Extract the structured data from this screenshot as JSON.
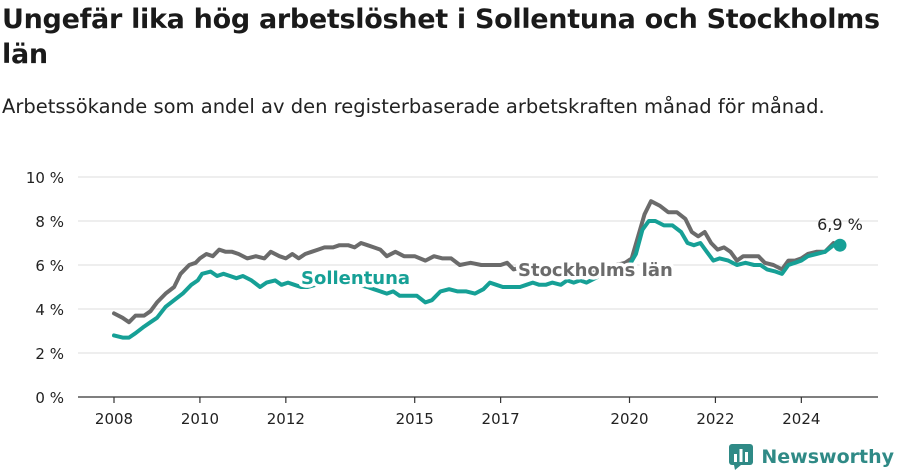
{
  "title": "Ungefär lika hög arbetslöshet i Sollentuna och Stockholms län",
  "subtitle": "Arbetssökande som andel av den registerbaserade arbetskraften månad för månad.",
  "brand": {
    "name": "Newsworthy",
    "icon": "newsworthy-logo-icon"
  },
  "colors": {
    "stockholm": "#6b6b6b",
    "sollentuna": "#16a096",
    "grid": "#dcdcdc"
  },
  "chart_data": {
    "type": "line",
    "ylim": [
      0,
      10
    ],
    "y_ticks": [
      0,
      2,
      4,
      6,
      8,
      10
    ],
    "y_tick_labels": [
      "0 %",
      "2 %",
      "4 %",
      "6 %",
      "8 %",
      "10 %"
    ],
    "x_ticks": [
      2008,
      2010,
      2012,
      2015,
      2017,
      2020,
      2022,
      2024
    ],
    "x_tick_labels": [
      "2008",
      "2010",
      "2012",
      "2015",
      "2017",
      "2020",
      "2022",
      "2024"
    ],
    "grid": true,
    "last_value_label": "6,9 %",
    "series": [
      {
        "name": "Stockholms län",
        "points": [
          [
            2008.0,
            3.8
          ],
          [
            2008.2,
            3.6
          ],
          [
            2008.35,
            3.4
          ],
          [
            2008.5,
            3.7
          ],
          [
            2008.7,
            3.7
          ],
          [
            2008.85,
            3.9
          ],
          [
            2009.0,
            4.3
          ],
          [
            2009.2,
            4.7
          ],
          [
            2009.4,
            5.0
          ],
          [
            2009.55,
            5.6
          ],
          [
            2009.75,
            6.0
          ],
          [
            2009.9,
            6.1
          ],
          [
            2010.0,
            6.3
          ],
          [
            2010.15,
            6.5
          ],
          [
            2010.3,
            6.4
          ],
          [
            2010.45,
            6.7
          ],
          [
            2010.6,
            6.6
          ],
          [
            2010.75,
            6.6
          ],
          [
            2010.9,
            6.5
          ],
          [
            2011.1,
            6.3
          ],
          [
            2011.3,
            6.4
          ],
          [
            2011.5,
            6.3
          ],
          [
            2011.65,
            6.6
          ],
          [
            2011.85,
            6.4
          ],
          [
            2012.0,
            6.3
          ],
          [
            2012.15,
            6.5
          ],
          [
            2012.3,
            6.3
          ],
          [
            2012.45,
            6.5
          ],
          [
            2012.6,
            6.6
          ],
          [
            2012.75,
            6.7
          ],
          [
            2012.9,
            6.8
          ],
          [
            2013.1,
            6.8
          ],
          [
            2013.25,
            6.9
          ],
          [
            2013.45,
            6.9
          ],
          [
            2013.6,
            6.8
          ],
          [
            2013.75,
            7.0
          ],
          [
            2013.9,
            6.9
          ],
          [
            2014.05,
            6.8
          ],
          [
            2014.2,
            6.7
          ],
          [
            2014.35,
            6.4
          ],
          [
            2014.55,
            6.6
          ],
          [
            2014.75,
            6.4
          ],
          [
            2015.0,
            6.4
          ],
          [
            2015.25,
            6.2
          ],
          [
            2015.45,
            6.4
          ],
          [
            2015.65,
            6.3
          ],
          [
            2015.85,
            6.3
          ],
          [
            2016.05,
            6.0
          ],
          [
            2016.3,
            6.1
          ],
          [
            2016.55,
            6.0
          ],
          [
            2016.8,
            6.0
          ],
          [
            2017.0,
            6.0
          ],
          [
            2017.15,
            6.1
          ],
          [
            2017.3,
            5.8
          ],
          [
            2017.5,
            5.9
          ],
          [
            2017.7,
            5.8
          ],
          [
            2017.9,
            5.6
          ],
          [
            2018.1,
            5.6
          ],
          [
            2018.3,
            5.7
          ],
          [
            2018.5,
            5.5
          ],
          [
            2018.7,
            5.6
          ],
          [
            2018.9,
            5.7
          ],
          [
            2019.1,
            5.6
          ],
          [
            2019.3,
            5.8
          ],
          [
            2019.5,
            5.9
          ],
          [
            2019.7,
            6.0
          ],
          [
            2019.9,
            6.1
          ],
          [
            2020.05,
            6.3
          ],
          [
            2020.2,
            7.3
          ],
          [
            2020.35,
            8.3
          ],
          [
            2020.5,
            8.9
          ],
          [
            2020.7,
            8.7
          ],
          [
            2020.9,
            8.4
          ],
          [
            2021.1,
            8.4
          ],
          [
            2021.3,
            8.1
          ],
          [
            2021.45,
            7.5
          ],
          [
            2021.6,
            7.3
          ],
          [
            2021.75,
            7.5
          ],
          [
            2021.9,
            7.0
          ],
          [
            2022.05,
            6.7
          ],
          [
            2022.2,
            6.8
          ],
          [
            2022.35,
            6.6
          ],
          [
            2022.5,
            6.2
          ],
          [
            2022.65,
            6.4
          ],
          [
            2022.8,
            6.4
          ],
          [
            2023.0,
            6.4
          ],
          [
            2023.15,
            6.1
          ],
          [
            2023.35,
            6.0
          ],
          [
            2023.55,
            5.8
          ],
          [
            2023.7,
            6.2
          ],
          [
            2023.85,
            6.2
          ],
          [
            2024.0,
            6.3
          ],
          [
            2024.15,
            6.5
          ],
          [
            2024.35,
            6.6
          ],
          [
            2024.55,
            6.6
          ],
          [
            2024.75,
            7.0
          ],
          [
            2024.9,
            6.9
          ]
        ]
      },
      {
        "name": "Sollentuna",
        "points": [
          [
            2008.0,
            2.8
          ],
          [
            2008.2,
            2.7
          ],
          [
            2008.35,
            2.7
          ],
          [
            2008.5,
            2.9
          ],
          [
            2008.7,
            3.2
          ],
          [
            2008.85,
            3.4
          ],
          [
            2009.0,
            3.6
          ],
          [
            2009.2,
            4.1
          ],
          [
            2009.4,
            4.4
          ],
          [
            2009.6,
            4.7
          ],
          [
            2009.8,
            5.1
          ],
          [
            2009.95,
            5.3
          ],
          [
            2010.05,
            5.6
          ],
          [
            2010.25,
            5.7
          ],
          [
            2010.4,
            5.5
          ],
          [
            2010.55,
            5.6
          ],
          [
            2010.7,
            5.5
          ],
          [
            2010.85,
            5.4
          ],
          [
            2011.0,
            5.5
          ],
          [
            2011.2,
            5.3
          ],
          [
            2011.4,
            5.0
          ],
          [
            2011.55,
            5.2
          ],
          [
            2011.75,
            5.3
          ],
          [
            2011.9,
            5.1
          ],
          [
            2012.05,
            5.2
          ],
          [
            2012.2,
            5.1
          ],
          [
            2012.35,
            5.0
          ],
          [
            2012.5,
            5.0
          ],
          [
            2012.7,
            5.1
          ],
          [
            2012.9,
            5.2
          ],
          [
            2013.1,
            5.3
          ],
          [
            2013.3,
            5.2
          ],
          [
            2013.5,
            5.2
          ],
          [
            2013.7,
            5.1
          ],
          [
            2013.9,
            5.0
          ],
          [
            2014.05,
            4.9
          ],
          [
            2014.2,
            4.8
          ],
          [
            2014.35,
            4.7
          ],
          [
            2014.5,
            4.8
          ],
          [
            2014.65,
            4.6
          ],
          [
            2014.85,
            4.6
          ],
          [
            2015.05,
            4.6
          ],
          [
            2015.25,
            4.3
          ],
          [
            2015.4,
            4.4
          ],
          [
            2015.6,
            4.8
          ],
          [
            2015.8,
            4.9
          ],
          [
            2016.0,
            4.8
          ],
          [
            2016.2,
            4.8
          ],
          [
            2016.4,
            4.7
          ],
          [
            2016.6,
            4.9
          ],
          [
            2016.75,
            5.2
          ],
          [
            2016.9,
            5.1
          ],
          [
            2017.05,
            5.0
          ],
          [
            2017.25,
            5.0
          ],
          [
            2017.45,
            5.0
          ],
          [
            2017.6,
            5.1
          ],
          [
            2017.75,
            5.2
          ],
          [
            2017.9,
            5.1
          ],
          [
            2018.05,
            5.1
          ],
          [
            2018.2,
            5.2
          ],
          [
            2018.4,
            5.1
          ],
          [
            2018.55,
            5.3
          ],
          [
            2018.7,
            5.2
          ],
          [
            2018.85,
            5.3
          ],
          [
            2019.0,
            5.2
          ],
          [
            2019.2,
            5.4
          ],
          [
            2019.4,
            5.6
          ],
          [
            2019.6,
            5.8
          ],
          [
            2019.8,
            5.9
          ],
          [
            2020.0,
            6.0
          ],
          [
            2020.15,
            6.5
          ],
          [
            2020.3,
            7.6
          ],
          [
            2020.45,
            8.0
          ],
          [
            2020.6,
            8.0
          ],
          [
            2020.8,
            7.8
          ],
          [
            2021.0,
            7.8
          ],
          [
            2021.2,
            7.5
          ],
          [
            2021.35,
            7.0
          ],
          [
            2021.5,
            6.9
          ],
          [
            2021.65,
            7.0
          ],
          [
            2021.8,
            6.6
          ],
          [
            2021.95,
            6.2
          ],
          [
            2022.1,
            6.3
          ],
          [
            2022.3,
            6.2
          ],
          [
            2022.5,
            6.0
          ],
          [
            2022.7,
            6.1
          ],
          [
            2022.9,
            6.0
          ],
          [
            2023.05,
            6.0
          ],
          [
            2023.2,
            5.8
          ],
          [
            2023.4,
            5.7
          ],
          [
            2023.55,
            5.6
          ],
          [
            2023.7,
            6.0
          ],
          [
            2023.85,
            6.1
          ],
          [
            2024.0,
            6.2
          ],
          [
            2024.15,
            6.4
          ],
          [
            2024.35,
            6.5
          ],
          [
            2024.55,
            6.6
          ],
          [
            2024.75,
            6.9
          ],
          [
            2024.9,
            6.9
          ]
        ]
      }
    ]
  }
}
